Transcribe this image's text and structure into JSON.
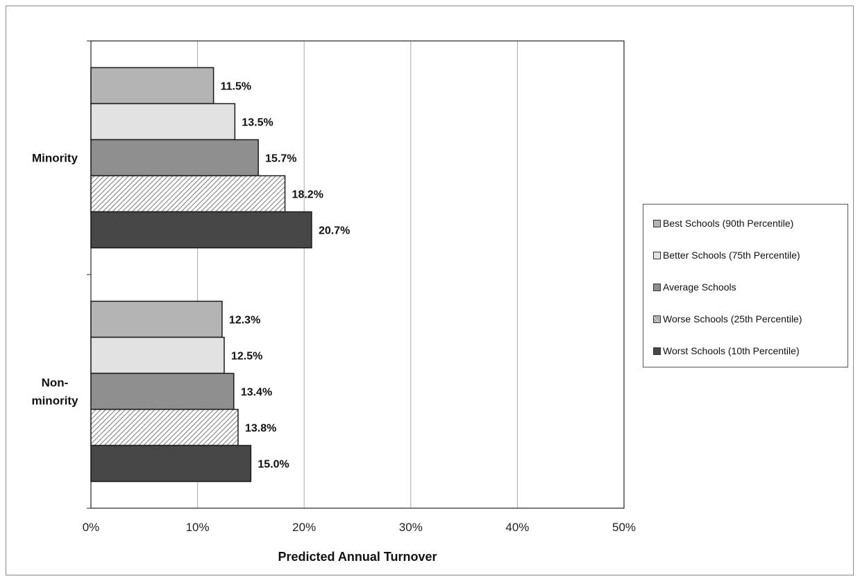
{
  "chart_data": {
    "type": "bar",
    "orientation": "horizontal",
    "categories": [
      "Minority",
      "Non-minority"
    ],
    "category_labels": [
      [
        "Minority"
      ],
      [
        "Non-",
        "minority"
      ]
    ],
    "series": [
      {
        "name": "Best Schools (90th Percentile)",
        "values": [
          11.5,
          12.3
        ],
        "labels": [
          "11.5%",
          "12.3%"
        ],
        "color": "#b4b4b4",
        "pattern": "solid"
      },
      {
        "name": "Better Schools (75th Percentile)",
        "values": [
          13.5,
          12.5
        ],
        "labels": [
          "13.5%",
          "12.5%"
        ],
        "color": "#e2e2e2",
        "pattern": "solid"
      },
      {
        "name": "Average Schools",
        "values": [
          15.7,
          13.4
        ],
        "labels": [
          "15.7%",
          "13.4%"
        ],
        "color": "#8f8f8f",
        "pattern": "solid"
      },
      {
        "name": "Worse Schools (25th Percentile)",
        "values": [
          18.2,
          13.8
        ],
        "labels": [
          "18.2%",
          "13.8%"
        ],
        "color": "#cfcfcf",
        "pattern": "hatch"
      },
      {
        "name": "Worst Schools (10th Percentile)",
        "values": [
          20.7,
          15.0
        ],
        "labels": [
          "20.7%",
          "15.0%"
        ],
        "color": "#474747",
        "pattern": "solid"
      }
    ],
    "xlabel": "Predicted Annual Turnover",
    "ylabel": "",
    "xlim": [
      0,
      50
    ],
    "xticks": [
      0,
      10,
      20,
      30,
      40,
      50
    ],
    "xtick_labels": [
      "0%",
      "10%",
      "20%",
      "30%",
      "40%",
      "50%"
    ],
    "grid": "vertical",
    "legend_position": "right"
  }
}
